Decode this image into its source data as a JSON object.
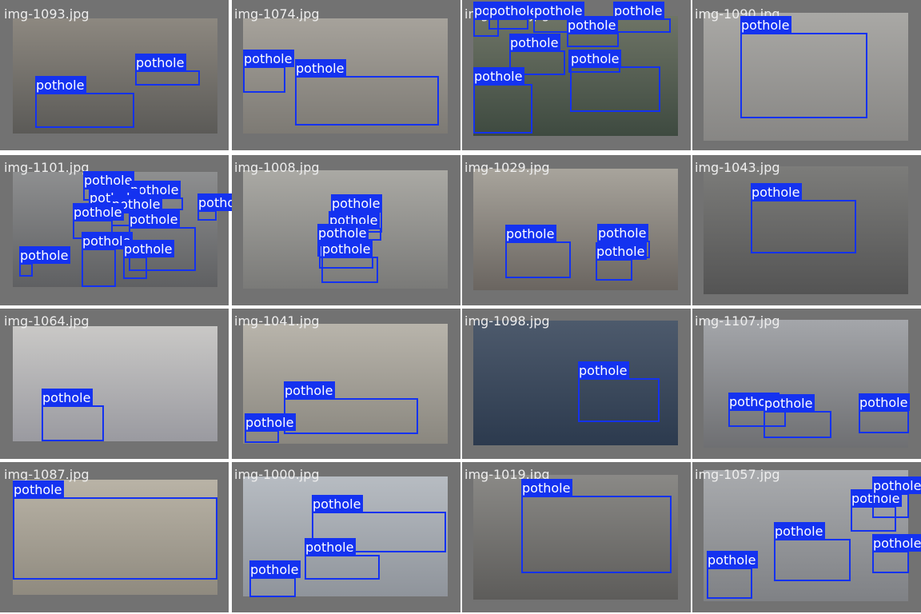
{
  "tiles": [
    {
      "filename": "img-1093.jpg",
      "boxes": [
        "pothole",
        "pothole"
      ]
    },
    {
      "filename": "img-1074.jpg",
      "boxes": [
        "pothole",
        "pothole"
      ]
    },
    {
      "filename": "img-1091.jpg",
      "boxes": [
        "pothole",
        "pothole",
        "pothole",
        "pothole",
        "pothole",
        "pothole",
        "pothole",
        "pothole",
        "pothole"
      ]
    },
    {
      "filename": "img-1090.jpg",
      "boxes": [
        "pothole"
      ]
    },
    {
      "filename": "img-1101.jpg",
      "boxes": [
        "pothole",
        "pothole",
        "pothole",
        "pothole",
        "pothole",
        "pothole",
        "pothole",
        "pothole",
        "pothole",
        "pothole"
      ]
    },
    {
      "filename": "img-1008.jpg",
      "boxes": [
        "pothole",
        "pothole",
        "pothole",
        "pothole",
        "pothole"
      ]
    },
    {
      "filename": "img-1029.jpg",
      "boxes": [
        "pothole",
        "pothole",
        "pothole"
      ]
    },
    {
      "filename": "img-1043.jpg",
      "boxes": [
        "pothole"
      ]
    },
    {
      "filename": "img-1064.jpg",
      "boxes": [
        "pothole"
      ]
    },
    {
      "filename": "img-1041.jpg",
      "boxes": [
        "pothole",
        "pothole"
      ]
    },
    {
      "filename": "img-1098.jpg",
      "boxes": [
        "pothole"
      ]
    },
    {
      "filename": "img-1107.jpg",
      "boxes": [
        "pothole",
        "pothole",
        "pothole"
      ]
    },
    {
      "filename": "img-1087.jpg",
      "boxes": [
        "pothole"
      ]
    },
    {
      "filename": "img-1000.jpg",
      "boxes": [
        "pothole",
        "pothole",
        "pothole"
      ]
    },
    {
      "filename": "img-1019.jpg",
      "boxes": [
        "pothole"
      ]
    },
    {
      "filename": "img-1057.jpg",
      "boxes": [
        "pothole",
        "pothole",
        "pothole",
        "pothole",
        "pothole"
      ]
    }
  ]
}
